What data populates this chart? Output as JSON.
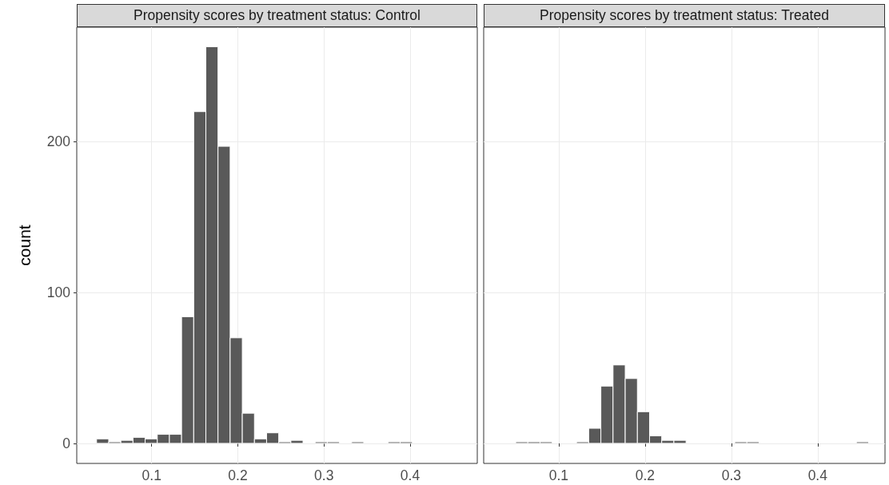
{
  "chart_data": [
    {
      "type": "histogram",
      "title": "Propensity scores by treatment status: Control",
      "ylabel": "count",
      "bins": [
        0.036,
        0.0501,
        0.0642,
        0.0783,
        0.0924,
        0.1065,
        0.1206,
        0.1347,
        0.1488,
        0.1629,
        0.177,
        0.1911,
        0.2052,
        0.2193,
        0.2334,
        0.2475,
        0.2616,
        0.2757,
        0.2898,
        0.3039,
        0.318,
        0.3321,
        0.3462,
        0.3603,
        0.3744,
        0.3885,
        0.4026,
        0.4167,
        0.4308,
        0.4449,
        0.459
      ],
      "values": [
        3,
        1,
        2,
        4,
        3,
        6,
        6,
        84,
        220,
        263,
        197,
        70,
        20,
        3,
        7,
        1,
        2,
        0,
        1,
        1,
        0,
        1,
        0,
        0,
        1,
        1,
        0,
        0,
        0,
        0
      ],
      "color": "#595959",
      "xlim": [
        0.013,
        0.478
      ],
      "ylim": [
        -13.3,
        276
      ],
      "xticks": [
        0.1,
        0.2,
        0.3,
        0.4
      ],
      "yticks": [
        0,
        100,
        200
      ],
      "grid": true
    },
    {
      "type": "histogram",
      "title": "Propensity scores by treatment status: Treated",
      "bins": [
        0.036,
        0.0501,
        0.0642,
        0.0783,
        0.0924,
        0.1065,
        0.1206,
        0.1347,
        0.1488,
        0.1629,
        0.177,
        0.1911,
        0.2052,
        0.2193,
        0.2334,
        0.2475,
        0.2616,
        0.2757,
        0.2898,
        0.3039,
        0.318,
        0.3321,
        0.3462,
        0.3603,
        0.3744,
        0.3885,
        0.4026,
        0.4167,
        0.4308,
        0.4449,
        0.459
      ],
      "values": [
        0,
        1,
        1,
        1,
        0,
        0,
        1,
        10,
        38,
        52,
        43,
        21,
        5,
        2,
        2,
        0,
        0,
        0,
        0,
        1,
        1,
        0,
        0,
        0,
        0,
        0,
        0,
        0,
        0,
        1
      ],
      "color": "#595959",
      "xlim": [
        0.013,
        0.478
      ],
      "ylim": [
        -13.3,
        276
      ],
      "xticks": [
        0.1,
        0.2,
        0.3,
        0.4
      ],
      "yticks": [
        0,
        100,
        200
      ],
      "grid": true,
      "tick_labels": "x"
    }
  ]
}
